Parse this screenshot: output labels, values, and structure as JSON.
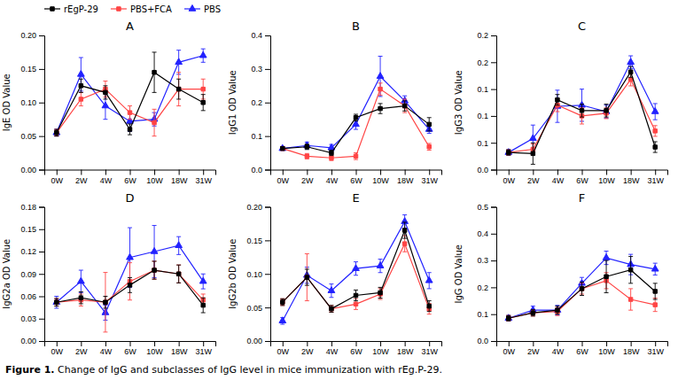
{
  "chart_data": [
    {
      "type": "line",
      "title": "A",
      "y_label": "IgE OD Value",
      "categories": [
        "0W",
        "2W",
        "4W",
        "6W",
        "10W",
        "18W",
        "31W"
      ],
      "ylim": [
        0.0,
        0.2
      ],
      "yticks": [
        {
          "value": 0.0,
          "label": "0.00"
        },
        0.05,
        {
          "value": 0.1,
          "label": "0.10"
        },
        0.15,
        {
          "value": 0.2,
          "label": "0.20"
        }
      ],
      "legend": "upper left",
      "series": [
        {
          "name": "rEgP-29",
          "color": "#000000",
          "marker": "square",
          "values": [
            0.055,
            0.125,
            0.115,
            0.06,
            0.145,
            0.12,
            0.1
          ],
          "errors": [
            0.005,
            0.01,
            0.01,
            0.008,
            0.03,
            0.015,
            0.012
          ]
        },
        {
          "name": "PBS+FCA",
          "color": "#FF4444",
          "marker": "square",
          "values": [
            0.055,
            0.105,
            0.12,
            0.085,
            0.07,
            0.12,
            0.12
          ],
          "errors": [
            0.005,
            0.01,
            0.012,
            0.01,
            0.02,
            0.025,
            0.015
          ]
        },
        {
          "name": "PBS",
          "color": "#2222FF",
          "marker": "triangle",
          "values": [
            0.055,
            0.142,
            0.095,
            0.072,
            0.075,
            0.16,
            0.17
          ],
          "errors": [
            0.005,
            0.025,
            0.02,
            0.015,
            0.01,
            0.018,
            0.01
          ]
        }
      ]
    },
    {
      "type": "line",
      "title": "B",
      "y_label": "IgG1 OD Value",
      "categories": [
        "0W",
        "2W",
        "4W",
        "6W",
        "10W",
        "18W",
        "31W"
      ],
      "ylim": [
        0.0,
        0.4
      ],
      "yticks": [
        {
          "value": 0.0,
          "label": "0.0"
        },
        0.1,
        0.2,
        0.3,
        0.4
      ],
      "series": [
        {
          "name": "rEgP-29",
          "color": "#000000",
          "marker": "square",
          "values": [
            0.063,
            0.068,
            0.05,
            0.155,
            0.182,
            0.19,
            0.135
          ],
          "errors": [
            0.005,
            0.008,
            0.008,
            0.01,
            0.015,
            0.015,
            0.02
          ]
        },
        {
          "name": "PBS+FCA",
          "color": "#FF4444",
          "marker": "square",
          "values": [
            0.063,
            0.04,
            0.035,
            0.04,
            0.24,
            0.19,
            0.068
          ],
          "errors": [
            0.005,
            0.008,
            0.008,
            0.01,
            0.018,
            0.02,
            0.01
          ]
        },
        {
          "name": "PBS",
          "color": "#2222FF",
          "marker": "triangle",
          "values": [
            0.063,
            0.072,
            0.065,
            0.135,
            0.278,
            0.205,
            0.12
          ],
          "errors": [
            0.005,
            0.01,
            0.01,
            0.015,
            0.06,
            0.015,
            0.012
          ]
        }
      ]
    },
    {
      "type": "line",
      "title": "C",
      "y_label": "IgG3 OD Value",
      "categories": [
        "0W",
        "2W",
        "4W",
        "6W",
        "10W",
        "18W",
        "31W"
      ],
      "ylim": [
        0.0,
        0.25
      ],
      "yticks": [
        {
          "value": 0.0,
          "label": "0.0"
        },
        {
          "value": 0.05,
          "label": "0.1"
        },
        0.1,
        {
          "value": 0.15,
          "label": "0.1"
        },
        0.2,
        {
          "value": 0.25,
          "label": "0.2"
        }
      ],
      "series": [
        {
          "name": "rEgP-29",
          "color": "#000000",
          "marker": "square",
          "values": [
            0.032,
            0.03,
            0.13,
            0.11,
            0.11,
            0.182,
            0.042
          ],
          "errors": [
            0.005,
            0.02,
            0.01,
            0.012,
            0.012,
            0.01,
            0.01
          ]
        },
        {
          "name": "PBS+FCA",
          "color": "#FF4444",
          "marker": "square",
          "values": [
            0.032,
            0.038,
            0.12,
            0.1,
            0.105,
            0.168,
            0.072
          ],
          "errors": [
            0.005,
            0.01,
            0.012,
            0.015,
            0.01,
            0.012,
            0.01
          ]
        },
        {
          "name": "PBS",
          "color": "#2222FF",
          "marker": "triangle",
          "values": [
            0.032,
            0.058,
            0.118,
            0.12,
            0.108,
            0.2,
            0.108
          ],
          "errors": [
            0.005,
            0.025,
            0.03,
            0.03,
            0.012,
            0.012,
            0.015
          ]
        }
      ]
    },
    {
      "type": "line",
      "title": "D",
      "y_label": "IgG2a OD Value",
      "categories": [
        "0W",
        "2W",
        "4W",
        "6W",
        "10W",
        "18W",
        "31W"
      ],
      "ylim": [
        0.0,
        0.18
      ],
      "yticks": [
        {
          "value": 0.0,
          "label": "0.00"
        },
        0.03,
        0.06,
        0.09,
        0.12,
        0.15,
        0.18
      ],
      "series": [
        {
          "name": "rEgP-29",
          "color": "#000000",
          "marker": "square",
          "values": [
            0.052,
            0.058,
            0.052,
            0.075,
            0.095,
            0.09,
            0.048
          ],
          "errors": [
            0.005,
            0.008,
            0.008,
            0.01,
            0.012,
            0.012,
            0.01
          ]
        },
        {
          "name": "PBS+FCA",
          "color": "#FF4444",
          "marker": "square",
          "values": [
            0.052,
            0.055,
            0.052,
            0.08,
            0.095,
            0.09,
            0.055
          ],
          "errors": [
            0.005,
            0.008,
            0.04,
            0.025,
            0.012,
            0.012,
            0.008
          ]
        },
        {
          "name": "PBS",
          "color": "#2222FF",
          "marker": "triangle",
          "values": [
            0.052,
            0.08,
            0.038,
            0.112,
            0.12,
            0.128,
            0.08
          ],
          "errors": [
            0.008,
            0.015,
            0.01,
            0.04,
            0.035,
            0.012,
            0.01
          ]
        }
      ]
    },
    {
      "type": "line",
      "title": "E",
      "y_label": "IgG2b OD Value",
      "categories": [
        "0W",
        "2W",
        "4W",
        "6W",
        "10W",
        "18W",
        "31W"
      ],
      "ylim": [
        0.0,
        0.2
      ],
      "yticks": [
        {
          "value": 0.0,
          "label": "0.00"
        },
        0.05,
        {
          "value": 0.1,
          "label": "0.10"
        },
        0.15,
        {
          "value": 0.2,
          "label": "0.20"
        }
      ],
      "series": [
        {
          "name": "rEgP-29",
          "color": "#000000",
          "marker": "square",
          "values": [
            0.058,
            0.095,
            0.048,
            0.068,
            0.072,
            0.165,
            0.052
          ],
          "errors": [
            0.005,
            0.012,
            0.005,
            0.008,
            0.008,
            0.012,
            0.008
          ]
        },
        {
          "name": "PBS+FCA",
          "color": "#FF4444",
          "marker": "square",
          "values": [
            0.058,
            0.095,
            0.048,
            0.055,
            0.07,
            0.145,
            0.048
          ],
          "errors": [
            0.005,
            0.035,
            0.005,
            0.008,
            0.008,
            0.012,
            0.008
          ]
        },
        {
          "name": "PBS",
          "color": "#2222FF",
          "marker": "triangle",
          "values": [
            0.03,
            0.098,
            0.075,
            0.108,
            0.112,
            0.178,
            0.09
          ],
          "errors": [
            0.005,
            0.012,
            0.01,
            0.01,
            0.01,
            0.01,
            0.012
          ]
        }
      ]
    },
    {
      "type": "line",
      "title": "F",
      "y_label": "IgG OD Value",
      "categories": [
        "0W",
        "2W",
        "4W",
        "6W",
        "10W",
        "18W",
        "31W"
      ],
      "ylim": [
        0.0,
        0.5
      ],
      "yticks": [
        {
          "value": 0.0,
          "label": "0.0"
        },
        0.1,
        0.2,
        0.3,
        0.4,
        0.5
      ],
      "series": [
        {
          "name": "rEgP-29",
          "color": "#000000",
          "marker": "square",
          "values": [
            0.085,
            0.105,
            0.115,
            0.195,
            0.24,
            0.265,
            0.185
          ],
          "errors": [
            0.01,
            0.012,
            0.015,
            0.025,
            0.06,
            0.05,
            0.03
          ]
        },
        {
          "name": "PBS+FCA",
          "color": "#FF4444",
          "marker": "square",
          "values": [
            0.085,
            0.105,
            0.11,
            0.195,
            0.225,
            0.155,
            0.135
          ],
          "errors": [
            0.01,
            0.012,
            0.015,
            0.02,
            0.03,
            0.04,
            0.025
          ]
        },
        {
          "name": "PBS",
          "color": "#2222FF",
          "marker": "triangle",
          "values": [
            0.085,
            0.115,
            0.115,
            0.215,
            0.31,
            0.285,
            0.268
          ],
          "errors": [
            0.01,
            0.015,
            0.018,
            0.022,
            0.025,
            0.038,
            0.022
          ]
        }
      ]
    }
  ],
  "annotations": [
    "Figure 1.",
    " Change of IgG and subclasses of IgG level in mice immunization with rEg.P-29."
  ]
}
